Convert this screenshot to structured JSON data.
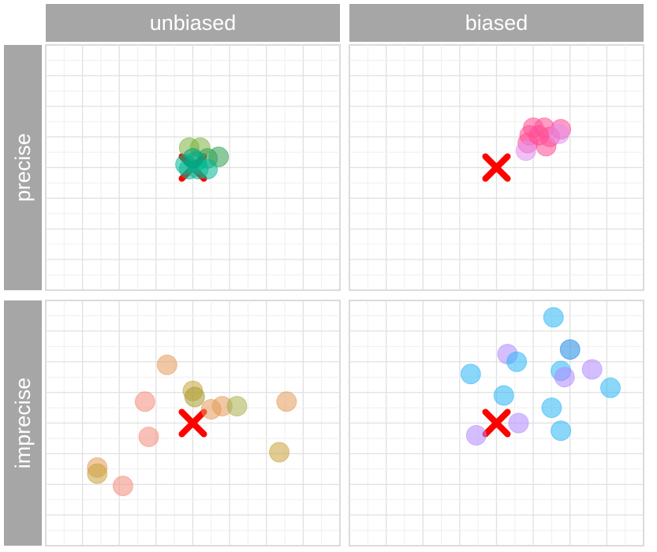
{
  "chart_data": {
    "type": "scatter",
    "facets": {
      "columns": [
        "unbiased",
        "biased"
      ],
      "rows": [
        "precise",
        "imprecise"
      ]
    },
    "target": {
      "x": 0,
      "y": 0,
      "marker": "x",
      "color": "#ff0000"
    },
    "axis_range": {
      "x": [
        -4,
        4
      ],
      "y": [
        -4,
        4
      ]
    },
    "grid": true,
    "panels": [
      {
        "col": "unbiased",
        "row": "precise",
        "points": [
          {
            "x": -0.1,
            "y": 0.65,
            "color": "#7cb342"
          },
          {
            "x": 0.2,
            "y": 0.65,
            "color": "#7cb342"
          },
          {
            "x": 0.7,
            "y": 0.35,
            "color": "#2e9e4f"
          },
          {
            "x": 0.4,
            "y": 0.3,
            "color": "#2e9e4f"
          },
          {
            "x": 0.1,
            "y": 0.2,
            "color": "#00b894"
          },
          {
            "x": -0.2,
            "y": 0.1,
            "color": "#00b894"
          },
          {
            "x": -0.1,
            "y": -0.05,
            "color": "#00b894"
          },
          {
            "x": 0.15,
            "y": -0.05,
            "color": "#00b894"
          },
          {
            "x": 0.4,
            "y": -0.05,
            "color": "#00b894"
          },
          {
            "x": 0.0,
            "y": 0.3,
            "color": "#00a37a"
          }
        ]
      },
      {
        "col": "biased",
        "row": "precise",
        "points": [
          {
            "x": 1.0,
            "y": 1.3,
            "color": "#ff4d94"
          },
          {
            "x": 1.3,
            "y": 1.3,
            "color": "#ff4d94"
          },
          {
            "x": 1.75,
            "y": 1.25,
            "color": "#ff4d94"
          },
          {
            "x": 0.9,
            "y": 1.05,
            "color": "#ff4d94"
          },
          {
            "x": 1.15,
            "y": 1.05,
            "color": "#ff4d94"
          },
          {
            "x": 1.45,
            "y": 1.0,
            "color": "#ff4d94"
          },
          {
            "x": 0.85,
            "y": 0.8,
            "color": "#ff4d94"
          },
          {
            "x": 1.35,
            "y": 0.7,
            "color": "#ff4d94"
          },
          {
            "x": 0.8,
            "y": 0.55,
            "color": "#e28ef0"
          },
          {
            "x": 1.7,
            "y": 1.1,
            "color": "#e28ef0"
          }
        ]
      },
      {
        "col": "unbiased",
        "row": "imprecise",
        "points": [
          {
            "x": -0.7,
            "y": 1.9,
            "color": "#e39b5a"
          },
          {
            "x": -1.3,
            "y": 0.7,
            "color": "#f28d7c"
          },
          {
            "x": -1.2,
            "y": -0.45,
            "color": "#f28d7c"
          },
          {
            "x": -2.6,
            "y": -1.45,
            "color": "#e39b5a"
          },
          {
            "x": -2.6,
            "y": -1.65,
            "color": "#c9a33a"
          },
          {
            "x": -1.9,
            "y": -2.05,
            "color": "#f28d7c"
          },
          {
            "x": 0.0,
            "y": 1.05,
            "color": "#c9a33a"
          },
          {
            "x": 0.05,
            "y": 0.85,
            "color": "#a59a2e"
          },
          {
            "x": 0.5,
            "y": 0.45,
            "color": "#e39b5a"
          },
          {
            "x": 0.8,
            "y": 0.55,
            "color": "#e39b5a"
          },
          {
            "x": 1.2,
            "y": 0.55,
            "color": "#a5b04a"
          },
          {
            "x": 2.55,
            "y": 0.7,
            "color": "#e39b5a"
          },
          {
            "x": 2.35,
            "y": -0.95,
            "color": "#c9a33a"
          }
        ]
      },
      {
        "col": "biased",
        "row": "imprecise",
        "points": [
          {
            "x": 1.55,
            "y": 3.45,
            "color": "#29b6f6"
          },
          {
            "x": 2.0,
            "y": 2.4,
            "color": "#1e88e5"
          },
          {
            "x": 0.3,
            "y": 2.25,
            "color": "#b388ff"
          },
          {
            "x": 0.55,
            "y": 2.0,
            "color": "#29b6f6"
          },
          {
            "x": 1.75,
            "y": 1.7,
            "color": "#29b6f6"
          },
          {
            "x": 1.85,
            "y": 1.5,
            "color": "#b388ff"
          },
          {
            "x": 2.6,
            "y": 1.75,
            "color": "#b388ff"
          },
          {
            "x": -0.7,
            "y": 1.6,
            "color": "#29b6f6"
          },
          {
            "x": 3.1,
            "y": 1.15,
            "color": "#29b6f6"
          },
          {
            "x": 0.2,
            "y": 0.9,
            "color": "#29b6f6"
          },
          {
            "x": 1.5,
            "y": 0.5,
            "color": "#29b6f6"
          },
          {
            "x": 0.6,
            "y": 0.0,
            "color": "#b388ff"
          },
          {
            "x": 1.75,
            "y": -0.25,
            "color": "#29b6f6"
          },
          {
            "x": -0.55,
            "y": -0.4,
            "color": "#b388ff"
          }
        ]
      }
    ]
  }
}
